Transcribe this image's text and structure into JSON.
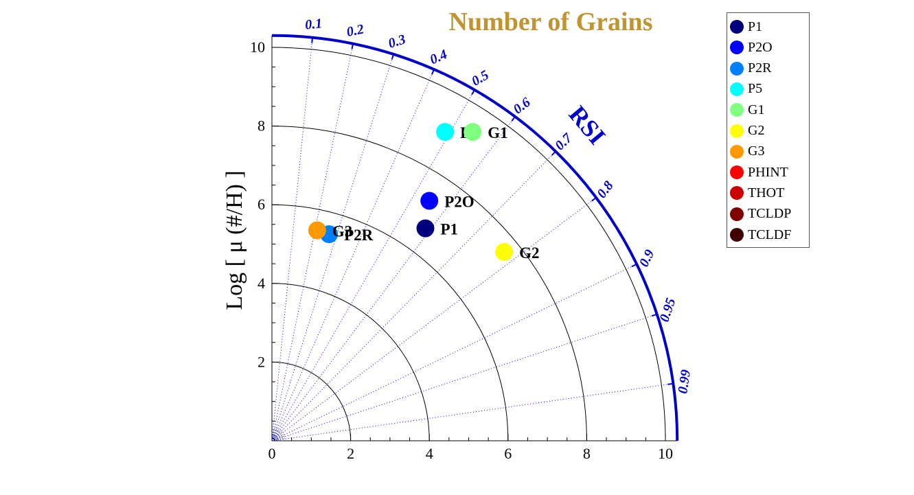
{
  "chart_data": {
    "type": "scatter",
    "title": "Number of Grains",
    "ylabel": "Log [ μ (#/H) ]",
    "arc_label": "RSI",
    "xlim": [
      0,
      10.3
    ],
    "ylim": [
      0,
      10.3
    ],
    "x_ticks": [
      "0",
      "2",
      "4",
      "6",
      "8",
      "10"
    ],
    "y_ticks": [
      "2",
      "4",
      "6",
      "8",
      "10"
    ],
    "rsi_ticks": [
      "0.1",
      "0.2",
      "0.3",
      "0.4",
      "0.5",
      "0.6",
      "0.7",
      "0.8",
      "0.9",
      "0.95",
      "0.99"
    ],
    "rsi_values": [
      0.1,
      0.2,
      0.3,
      0.4,
      0.5,
      0.6,
      0.7,
      0.8,
      0.9,
      0.95,
      0.99
    ],
    "arc_radii": [
      2,
      4,
      6,
      8,
      10
    ],
    "points": [
      {
        "label": "P1",
        "x": 3.9,
        "y": 5.4,
        "color": "#00007f"
      },
      {
        "label": "P2O",
        "x": 4.0,
        "y": 6.1,
        "color": "#0000ff"
      },
      {
        "label": "P2R",
        "x": 1.45,
        "y": 5.25,
        "color": "#0080ff"
      },
      {
        "label": "P5",
        "x": 4.4,
        "y": 7.85,
        "color": "#00ffff"
      },
      {
        "label": "G1",
        "x": 5.1,
        "y": 7.85,
        "color": "#80ff80"
      },
      {
        "label": "G2",
        "x": 5.9,
        "y": 4.8,
        "color": "#ffff00"
      },
      {
        "label": "G3",
        "x": 1.15,
        "y": 5.35,
        "color": "#ff9900"
      }
    ],
    "legend": [
      {
        "label": "P1",
        "color": "#00007f"
      },
      {
        "label": "P2O",
        "color": "#0000ff"
      },
      {
        "label": "P2R",
        "color": "#0080ff"
      },
      {
        "label": "P5",
        "color": "#00ffff"
      },
      {
        "label": "G1",
        "color": "#80ff80"
      },
      {
        "label": "G2",
        "color": "#ffff00"
      },
      {
        "label": "G3",
        "color": "#ff9900"
      },
      {
        "label": "PHINT",
        "color": "#ff0000"
      },
      {
        "label": "THOT",
        "color": "#cc0000"
      },
      {
        "label": "TCLDP",
        "color": "#800000"
      },
      {
        "label": "TCLDF",
        "color": "#400000"
      }
    ],
    "legend_placement": "top-right",
    "colors": {
      "title": "#c09430",
      "axis": "#0000cc",
      "grid": "#000000"
    }
  }
}
